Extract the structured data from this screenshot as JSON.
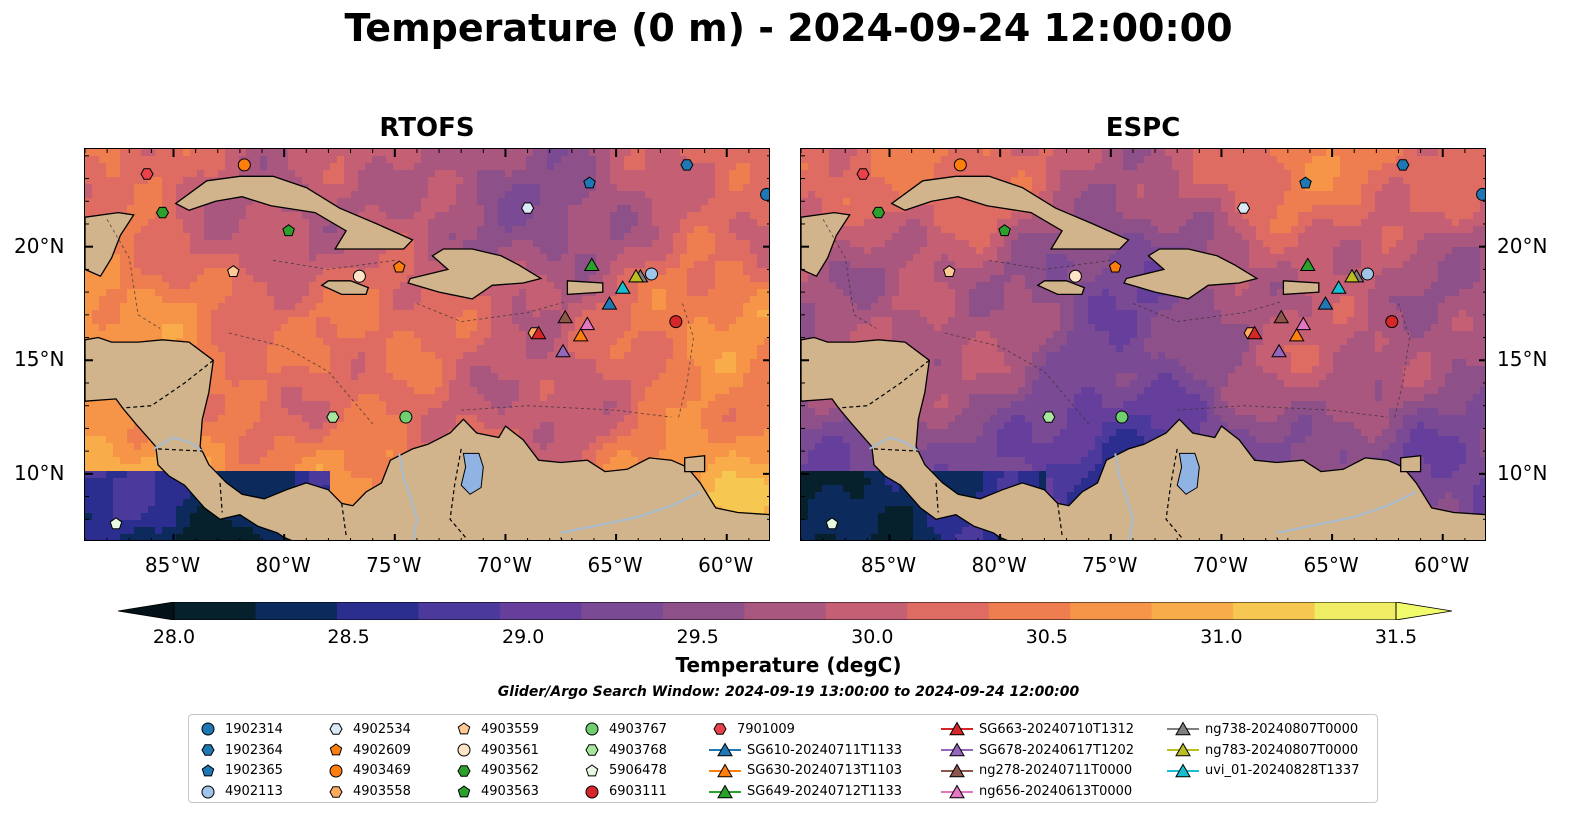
{
  "title": "Temperature (0 m) - 2024-09-24 12:00:00",
  "panels": [
    {
      "id": "rtofs",
      "title": "RTOFS"
    },
    {
      "id": "espc",
      "title": "ESPC"
    }
  ],
  "axes": {
    "lon_ticks": [
      "85°W",
      "80°W",
      "75°W",
      "70°W",
      "65°W",
      "60°W"
    ],
    "lat_ticks": [
      "20°N",
      "15°N",
      "10°N"
    ],
    "lon_range": [
      -89.0,
      -58.0
    ],
    "lat_range": [
      7.0,
      24.3
    ]
  },
  "colorbar": {
    "label": "Temperature (degC)",
    "ticks": [
      "28.0",
      "28.5",
      "29.0",
      "29.5",
      "30.0",
      "30.5",
      "31.0",
      "31.5"
    ],
    "vmin": 28.0,
    "vmax": 31.5,
    "step": 0.25,
    "extend": "both",
    "colormap": "thermal",
    "colors": [
      "#06202c",
      "#0c2a5c",
      "#2b2e8f",
      "#4b3a9b",
      "#663f9c",
      "#7a4a94",
      "#8e5088",
      "#a9577e",
      "#c45f74",
      "#de6c62",
      "#ee7e4f",
      "#f69447",
      "#f8ad4a",
      "#f6c851",
      "#eeed63"
    ]
  },
  "search_window": "Glider/Argo Search Window: 2024-09-19 13:00:00 to 2024-09-24 12:00:00",
  "colors": {
    "land": "#d2b48c",
    "lake": "#8fb4e3",
    "river": "#a6bbd0"
  },
  "legend": {
    "columns": [
      [
        {
          "label": "1902314",
          "marker": "circle",
          "color": "#1f77b4"
        },
        {
          "label": "1902364",
          "marker": "hexagon",
          "color": "#1f77b4"
        },
        {
          "label": "1902365",
          "marker": "pentagon",
          "color": "#1f77b4"
        },
        {
          "label": "4902113",
          "marker": "circle",
          "color": "#9fc5e8"
        }
      ],
      [
        {
          "label": "4902534",
          "marker": "hexagon",
          "color": "#dbe9f6"
        },
        {
          "label": "4902609",
          "marker": "pentagon",
          "color": "#ff7f0e"
        },
        {
          "label": "4903469",
          "marker": "circle",
          "color": "#ff7f0e"
        },
        {
          "label": "4903558",
          "marker": "hexagon",
          "color": "#ffab5e"
        }
      ],
      [
        {
          "label": "4903559",
          "marker": "pentagon",
          "color": "#ffc995"
        },
        {
          "label": "4903561",
          "marker": "circle",
          "color": "#ffe4c7"
        },
        {
          "label": "4903562",
          "marker": "hexagon",
          "color": "#2ca02c"
        },
        {
          "label": "4903563",
          "marker": "pentagon",
          "color": "#2ca02c"
        }
      ],
      [
        {
          "label": "4903767",
          "marker": "circle",
          "color": "#6fcf6f"
        },
        {
          "label": "4903768",
          "marker": "hexagon",
          "color": "#a8e6a0"
        },
        {
          "label": "5906478",
          "marker": "pentagon",
          "color": "#e8fbe0"
        },
        {
          "label": "6903111",
          "marker": "circle",
          "color": "#d62728"
        }
      ],
      [
        {
          "label": "7901009",
          "marker": "hexagon",
          "color": "#e8434b"
        },
        {
          "label": "SG610-20240711T1133",
          "marker": "triangle",
          "color": "#1f77b4"
        },
        {
          "label": "SG630-20240713T1103",
          "marker": "triangle",
          "color": "#ff7f0e"
        },
        {
          "label": "SG649-20240712T1133",
          "marker": "triangle",
          "color": "#2ca02c"
        }
      ],
      [
        {
          "label": "SG663-20240710T1312",
          "marker": "triangle",
          "color": "#d62728"
        },
        {
          "label": "SG678-20240617T1202",
          "marker": "triangle",
          "color": "#9467bd"
        },
        {
          "label": "ng278-20240711T0000",
          "marker": "triangle",
          "color": "#8c564b"
        },
        {
          "label": "ng656-20240613T0000",
          "marker": "triangle",
          "color": "#e377c2"
        }
      ],
      [
        {
          "label": "ng738-20240807T0000",
          "marker": "triangle",
          "color": "#7f7f7f"
        },
        {
          "label": "ng783-20240807T0000",
          "marker": "triangle",
          "color": "#bcbd22"
        },
        {
          "label": "uvi_01-20240828T1337",
          "marker": "triangle",
          "color": "#17becf"
        }
      ]
    ]
  },
  "observations": [
    {
      "id": "1902314",
      "lon": -58.2,
      "lat": 22.3
    },
    {
      "id": "1902364",
      "lon": -61.8,
      "lat": 23.6
    },
    {
      "id": "1902365",
      "lon": -66.2,
      "lat": 22.8
    },
    {
      "id": "4902113",
      "lon": -63.4,
      "lat": 18.8
    },
    {
      "id": "4902534",
      "lon": -69.0,
      "lat": 21.7
    },
    {
      "id": "4902609",
      "lon": -74.8,
      "lat": 19.1
    },
    {
      "id": "4903469",
      "lon": -81.8,
      "lat": 23.6
    },
    {
      "id": "4903558",
      "lon": -68.7,
      "lat": 16.2
    },
    {
      "id": "4903559",
      "lon": -82.3,
      "lat": 18.9
    },
    {
      "id": "4903561",
      "lon": -76.6,
      "lat": 18.7
    },
    {
      "id": "4903562",
      "lon": -85.5,
      "lat": 21.5
    },
    {
      "id": "4903563",
      "lon": -79.8,
      "lat": 20.7
    },
    {
      "id": "4903767",
      "lon": -74.5,
      "lat": 12.5
    },
    {
      "id": "4903768",
      "lon": -77.8,
      "lat": 12.5
    },
    {
      "id": "5906478",
      "lon": -87.6,
      "lat": 7.8
    },
    {
      "id": "6903111",
      "lon": -62.3,
      "lat": 16.7
    },
    {
      "id": "7901009",
      "lon": -86.2,
      "lat": 23.2
    },
    {
      "id": "SG610-20240711T1133",
      "lon": -65.3,
      "lat": 17.5
    },
    {
      "id": "SG630-20240713T1103",
      "lon": -66.6,
      "lat": 16.1
    },
    {
      "id": "SG649-20240712T1133",
      "lon": -66.1,
      "lat": 19.2
    },
    {
      "id": "SG663-20240710T1312",
      "lon": -68.5,
      "lat": 16.2
    },
    {
      "id": "SG678-20240617T1202",
      "lon": -67.4,
      "lat": 15.4
    },
    {
      "id": "ng278-20240711T0000",
      "lon": -67.3,
      "lat": 16.9
    },
    {
      "id": "ng656-20240613T0000",
      "lon": -66.3,
      "lat": 16.6
    },
    {
      "id": "ng738-20240807T0000",
      "lon": -63.9,
      "lat": 18.7
    },
    {
      "id": "ng783-20240807T0000",
      "lon": -64.1,
      "lat": 18.7
    },
    {
      "id": "uvi_01-20240828T1337",
      "lon": -64.7,
      "lat": 18.2
    }
  ]
}
